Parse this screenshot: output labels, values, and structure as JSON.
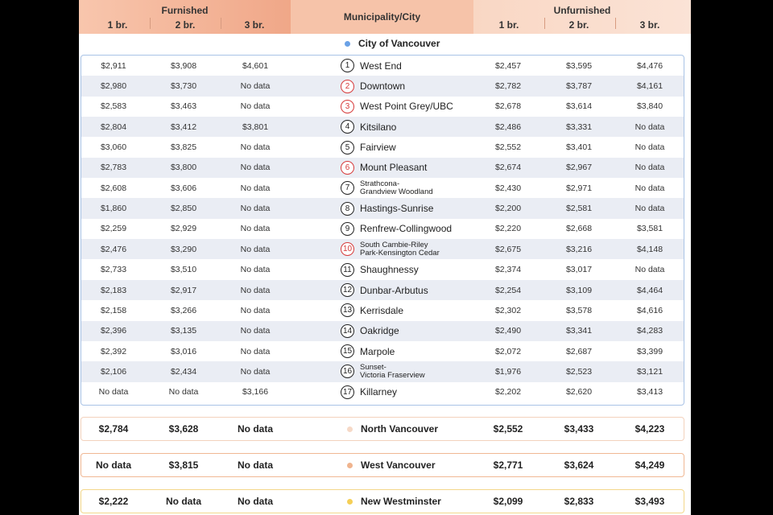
{
  "colors": {
    "vancouver_dot": "#6aa1e6",
    "north_dot": "#f6d9c7",
    "west_dot": "#f0b48e",
    "newwest_dot": "#f5cf57",
    "north_border": "#f3d2bd",
    "west_border": "#f0b894",
    "newwest_border": "#f3d78a",
    "highlight_red": "#d63a3a"
  },
  "header": {
    "furnished": "Furnished",
    "unfurnished": "Unfurnished",
    "municipality": "Municipality/City",
    "furnished_cols": [
      "1 br.",
      "2 br.",
      "3 br."
    ],
    "unfurnished_cols": [
      "1 br.",
      "2 br.",
      "3 br."
    ]
  },
  "city": "City of Vancouver",
  "neighbourhoods": [
    {
      "n": "1",
      "name": "West End",
      "red": false,
      "small": false,
      "f": [
        "$2,911",
        "$3,908",
        "$4,601"
      ],
      "u": [
        "$2,457",
        "$3,595",
        "$4,476"
      ]
    },
    {
      "n": "2",
      "name": "Downtown",
      "red": true,
      "small": false,
      "f": [
        "$2,980",
        "$3,730",
        "No data"
      ],
      "u": [
        "$2,782",
        "$3,787",
        "$4,161"
      ]
    },
    {
      "n": "3",
      "name": "West Point Grey/UBC",
      "red": true,
      "small": false,
      "f": [
        "$2,583",
        "$3,463",
        "No data"
      ],
      "u": [
        "$2,678",
        "$3,614",
        "$3,840"
      ]
    },
    {
      "n": "4",
      "name": "Kitsilano",
      "red": false,
      "small": false,
      "f": [
        "$2,804",
        "$3,412",
        "$3,801"
      ],
      "u": [
        "$2,486",
        "$3,331",
        "No data"
      ]
    },
    {
      "n": "5",
      "name": "Fairview",
      "red": false,
      "small": false,
      "f": [
        "$3,060",
        "$3,825",
        "No data"
      ],
      "u": [
        "$2,552",
        "$3,401",
        "No data"
      ]
    },
    {
      "n": "6",
      "name": "Mount Pleasant",
      "red": true,
      "small": false,
      "f": [
        "$2,783",
        "$3,800",
        "No data"
      ],
      "u": [
        "$2,674",
        "$2,967",
        "No data"
      ]
    },
    {
      "n": "7",
      "name": "Strathcona-\nGrandview Woodland",
      "red": false,
      "small": true,
      "f": [
        "$2,608",
        "$3,606",
        "No data"
      ],
      "u": [
        "$2,430",
        "$2,971",
        "No data"
      ]
    },
    {
      "n": "8",
      "name": "Hastings-Sunrise",
      "red": false,
      "small": false,
      "f": [
        "$1,860",
        "$2,850",
        "No data"
      ],
      "u": [
        "$2,200",
        "$2,581",
        "No data"
      ]
    },
    {
      "n": "9",
      "name": "Renfrew-Collingwood",
      "red": false,
      "small": false,
      "f": [
        "$2,259",
        "$2,929",
        "No data"
      ],
      "u": [
        "$2,220",
        "$2,668",
        "$3,581"
      ]
    },
    {
      "n": "10",
      "name": "South Cambie-Riley\nPark-Kensington Cedar",
      "red": true,
      "small": true,
      "f": [
        "$2,476",
        "$3,290",
        "No data"
      ],
      "u": [
        "$2,675",
        "$3,216",
        "$4,148"
      ]
    },
    {
      "n": "11",
      "name": "Shaughnessy",
      "red": false,
      "small": false,
      "f": [
        "$2,733",
        "$3,510",
        "No data"
      ],
      "u": [
        "$2,374",
        "$3,017",
        "No data"
      ]
    },
    {
      "n": "12",
      "name": "Dunbar-Arbutus",
      "red": false,
      "small": false,
      "f": [
        "$2,183",
        "$2,917",
        "No data"
      ],
      "u": [
        "$2,254",
        "$3,109",
        "$4,464"
      ]
    },
    {
      "n": "13",
      "name": "Kerrisdale",
      "red": false,
      "small": false,
      "f": [
        "$2,158",
        "$3,266",
        "No data"
      ],
      "u": [
        "$2,302",
        "$3,578",
        "$4,616"
      ]
    },
    {
      "n": "14",
      "name": "Oakridge",
      "red": false,
      "small": false,
      "f": [
        "$2,396",
        "$3,135",
        "No data"
      ],
      "u": [
        "$2,490",
        "$3,341",
        "$4,283"
      ]
    },
    {
      "n": "15",
      "name": "Marpole",
      "red": false,
      "small": false,
      "f": [
        "$2,392",
        "$3,016",
        "No data"
      ],
      "u": [
        "$2,072",
        "$2,687",
        "$3,399"
      ]
    },
    {
      "n": "16",
      "name": "Sunset-\nVictoria Fraserview",
      "red": false,
      "small": true,
      "f": [
        "$2,106",
        "$2,434",
        "No data"
      ],
      "u": [
        "$1,976",
        "$2,523",
        "$3,121"
      ]
    },
    {
      "n": "17",
      "name": "Killarney",
      "red": false,
      "small": false,
      "f": [
        "No data",
        "No data",
        "$3,166"
      ],
      "u": [
        "$2,202",
        "$2,620",
        "$3,413"
      ]
    }
  ],
  "summaries": [
    {
      "name": "North Vancouver",
      "f": [
        "$2,784",
        "$3,628",
        "No data"
      ],
      "u": [
        "$2,552",
        "$3,433",
        "$4,223"
      ]
    },
    {
      "name": "West Vancouver",
      "f": [
        "No data",
        "$3,815",
        "No data"
      ],
      "u": [
        "$2,771",
        "$3,624",
        "$4,249"
      ]
    },
    {
      "name": "New Westminster",
      "f": [
        "$2,222",
        "No data",
        "No data"
      ],
      "u": [
        "$2,099",
        "$2,833",
        "$3,493"
      ]
    }
  ]
}
